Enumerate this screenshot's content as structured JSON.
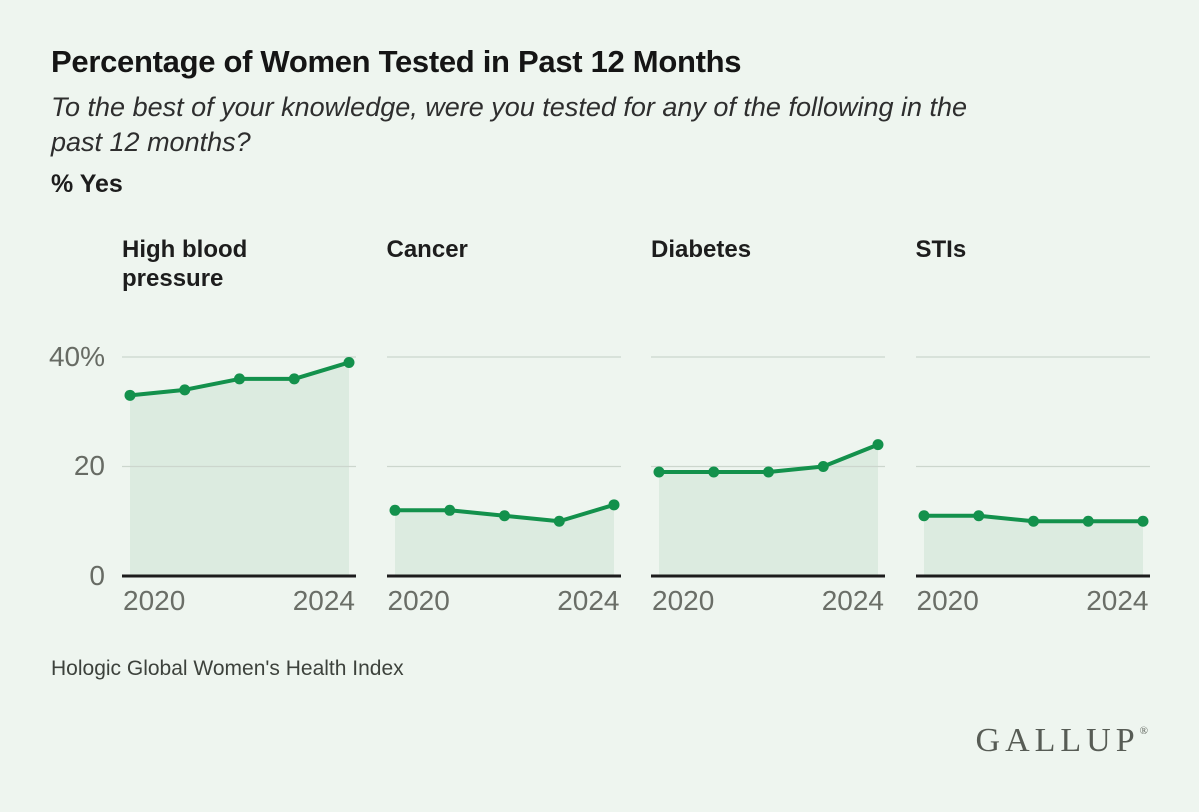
{
  "header": {
    "title": "Percentage of Women Tested in Past 12 Months",
    "subtitle_lines": [
      "To the best of your knowledge, were you tested for any of the following in the",
      "past 12 months?"
    ],
    "unit_label": "% Yes"
  },
  "chart_data": {
    "type": "area",
    "x": [
      2020,
      2021,
      2022,
      2023,
      2024
    ],
    "x_tick_labels": [
      "2020",
      "2024"
    ],
    "y_ticks": [
      {
        "value": 40,
        "label": "40%"
      },
      {
        "value": 20,
        "label": "20"
      },
      {
        "value": 0,
        "label": "0"
      }
    ],
    "ylim": [
      0,
      47.5
    ],
    "grid": "on",
    "legend": "none",
    "series": [
      {
        "name": "High blood pressure",
        "values": [
          33,
          34,
          36,
          36,
          39
        ]
      },
      {
        "name": "Cancer",
        "values": [
          12,
          12,
          11,
          10,
          13
        ]
      },
      {
        "name": "Diabetes",
        "values": [
          19,
          19,
          19,
          20,
          24
        ]
      },
      {
        "name": "STIs",
        "values": [
          11,
          11,
          10,
          10,
          10
        ]
      }
    ],
    "colors": {
      "line": "#13914c",
      "fill": "#dcebe0",
      "grid": "#ccd6cd",
      "axis": "#1c1c1c",
      "tick_text": "#676b64",
      "background": "#eef5ef"
    }
  },
  "footer": {
    "source": "Hologic Global Women's Health Index",
    "brand": "GALLUP",
    "brand_mark": "®"
  }
}
